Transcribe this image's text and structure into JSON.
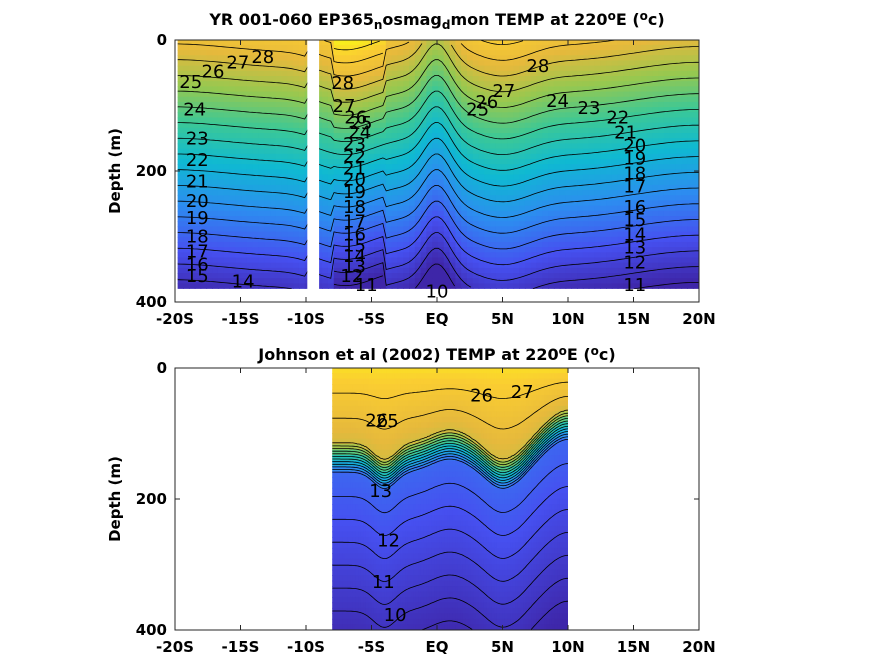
{
  "chart_data": [
    {
      "type": "heatmap",
      "title_parts": {
        "pre": "YR 001-060 EP365",
        "sub1": "n",
        "mid": "osmag",
        "sub2": "d",
        "post": "mon TEMP at 220",
        "sup1": "o",
        "tail": "E (",
        "sup2": "o",
        "end": "c)"
      },
      "xlabel": "",
      "ylabel": "Depth (m)",
      "xticks": [
        -20,
        -15,
        -10,
        -5,
        0,
        5,
        10,
        15,
        20
      ],
      "xtick_labels": [
        "-20S",
        "-15S",
        "-10S",
        "-5S",
        "EQ",
        "5N",
        "10N",
        "15N",
        "20N"
      ],
      "yticks": [
        0,
        200,
        400
      ],
      "ytick_labels": [
        "0",
        "200",
        "400"
      ],
      "xlim": [
        -20,
        20
      ],
      "ylim": [
        400,
        0
      ],
      "data_extent": {
        "x": [
          -19.8,
          20
        ],
        "depth": [
          0,
          380
        ]
      },
      "mask_x": [
        -9.9,
        -9.0
      ],
      "color_range": [
        10,
        29
      ],
      "contour_levels": [
        10,
        11,
        12,
        13,
        14,
        15,
        16,
        17,
        18,
        19,
        20,
        21,
        22,
        23,
        24,
        25,
        26,
        27,
        28
      ],
      "contour_labels": [
        {
          "text": "28",
          "x": -13.3,
          "d": 26
        },
        {
          "text": "27",
          "x": -15.2,
          "d": 34
        },
        {
          "text": "26",
          "x": -17.1,
          "d": 48
        },
        {
          "text": "25",
          "x": -18.8,
          "d": 64
        },
        {
          "text": "24",
          "x": -18.5,
          "d": 106
        },
        {
          "text": "23",
          "x": -18.3,
          "d": 150
        },
        {
          "text": "22",
          "x": -18.3,
          "d": 183
        },
        {
          "text": "21",
          "x": -18.3,
          "d": 216
        },
        {
          "text": "20",
          "x": -18.3,
          "d": 246
        },
        {
          "text": "19",
          "x": -18.3,
          "d": 272
        },
        {
          "text": "18",
          "x": -18.3,
          "d": 300
        },
        {
          "text": "17",
          "x": -18.3,
          "d": 323
        },
        {
          "text": "16",
          "x": -18.3,
          "d": 343
        },
        {
          "text": "15",
          "x": -18.3,
          "d": 360
        },
        {
          "text": "14",
          "x": -14.8,
          "d": 369
        },
        {
          "text": "28",
          "x": -7.2,
          "d": 66
        },
        {
          "text": "27",
          "x": -7.1,
          "d": 101
        },
        {
          "text": "26",
          "x": -6.2,
          "d": 118
        },
        {
          "text": "25",
          "x": -5.8,
          "d": 127
        },
        {
          "text": "24",
          "x": -5.9,
          "d": 141
        },
        {
          "text": "23",
          "x": -6.3,
          "d": 159
        },
        {
          "text": "22",
          "x": -6.3,
          "d": 178
        },
        {
          "text": "21",
          "x": -6.3,
          "d": 196
        },
        {
          "text": "20",
          "x": -6.3,
          "d": 213
        },
        {
          "text": "19",
          "x": -6.3,
          "d": 232
        },
        {
          "text": "18",
          "x": -6.3,
          "d": 255
        },
        {
          "text": "17",
          "x": -6.3,
          "d": 277
        },
        {
          "text": "16",
          "x": -6.3,
          "d": 297
        },
        {
          "text": "15",
          "x": -6.3,
          "d": 314
        },
        {
          "text": "14",
          "x": -6.3,
          "d": 330
        },
        {
          "text": "13",
          "x": -6.3,
          "d": 346
        },
        {
          "text": "12",
          "x": -6.5,
          "d": 360
        },
        {
          "text": "11",
          "x": -5.4,
          "d": 374
        },
        {
          "text": "10",
          "x": 0,
          "d": 384
        },
        {
          "text": "28",
          "x": 7.7,
          "d": 40
        },
        {
          "text": "27",
          "x": 5.1,
          "d": 78
        },
        {
          "text": "26",
          "x": 3.8,
          "d": 95
        },
        {
          "text": "25",
          "x": 3.1,
          "d": 106
        },
        {
          "text": "24",
          "x": 9.2,
          "d": 93
        },
        {
          "text": "23",
          "x": 11.6,
          "d": 104
        },
        {
          "text": "22",
          "x": 13.8,
          "d": 118
        },
        {
          "text": "21",
          "x": 14.4,
          "d": 141
        },
        {
          "text": "20",
          "x": 15.1,
          "d": 161
        },
        {
          "text": "19",
          "x": 15.1,
          "d": 181
        },
        {
          "text": "18",
          "x": 15.1,
          "d": 204
        },
        {
          "text": "17",
          "x": 15.1,
          "d": 224
        },
        {
          "text": "16",
          "x": 15.1,
          "d": 255
        },
        {
          "text": "15",
          "x": 15.1,
          "d": 275
        },
        {
          "text": "14",
          "x": 15.1,
          "d": 297
        },
        {
          "text": "13",
          "x": 15.1,
          "d": 317
        },
        {
          "text": "12",
          "x": 15.1,
          "d": 340
        },
        {
          "text": "11",
          "x": 15.1,
          "d": 374
        }
      ]
    },
    {
      "type": "heatmap",
      "title_parts": {
        "pre": "Johnson et al (2002) TEMP at 220",
        "sup1": "o",
        "tail": "E (",
        "sup2": "o",
        "end": "c)"
      },
      "xlabel": "",
      "ylabel": "Depth (m)",
      "xticks": [
        -20,
        -15,
        -10,
        -5,
        0,
        5,
        10,
        15,
        20
      ],
      "xtick_labels": [
        "-20S",
        "-15S",
        "-10S",
        "-5S",
        "EQ",
        "5N",
        "10N",
        "15N",
        "20N"
      ],
      "yticks": [
        0,
        200,
        400
      ],
      "ytick_labels": [
        "0",
        "200",
        "400"
      ],
      "xlim": [
        -20,
        20
      ],
      "ylim": [
        400,
        0
      ],
      "data_extent": {
        "x": [
          -8,
          10
        ],
        "depth": [
          0,
          400
        ]
      },
      "color_range": [
        9.5,
        29
      ],
      "contour_levels": [
        10,
        10.5,
        11,
        11.5,
        12,
        12.5,
        13,
        14,
        15,
        16,
        17,
        18,
        19,
        20,
        21,
        22,
        23,
        24,
        25,
        26,
        27,
        28
      ],
      "contour_labels": [
        {
          "text": "26",
          "x": 3.4,
          "d": 42
        },
        {
          "text": "27",
          "x": 6.5,
          "d": 37
        },
        {
          "text": "26",
          "x": -4.6,
          "d": 80
        },
        {
          "text": "25",
          "x": -3.8,
          "d": 81
        },
        {
          "text": "13",
          "x": -4.3,
          "d": 188
        },
        {
          "text": "12",
          "x": -3.7,
          "d": 263
        },
        {
          "text": "11",
          "x": -4.1,
          "d": 327
        },
        {
          "text": "10",
          "x": -3.2,
          "d": 377
        }
      ]
    }
  ]
}
